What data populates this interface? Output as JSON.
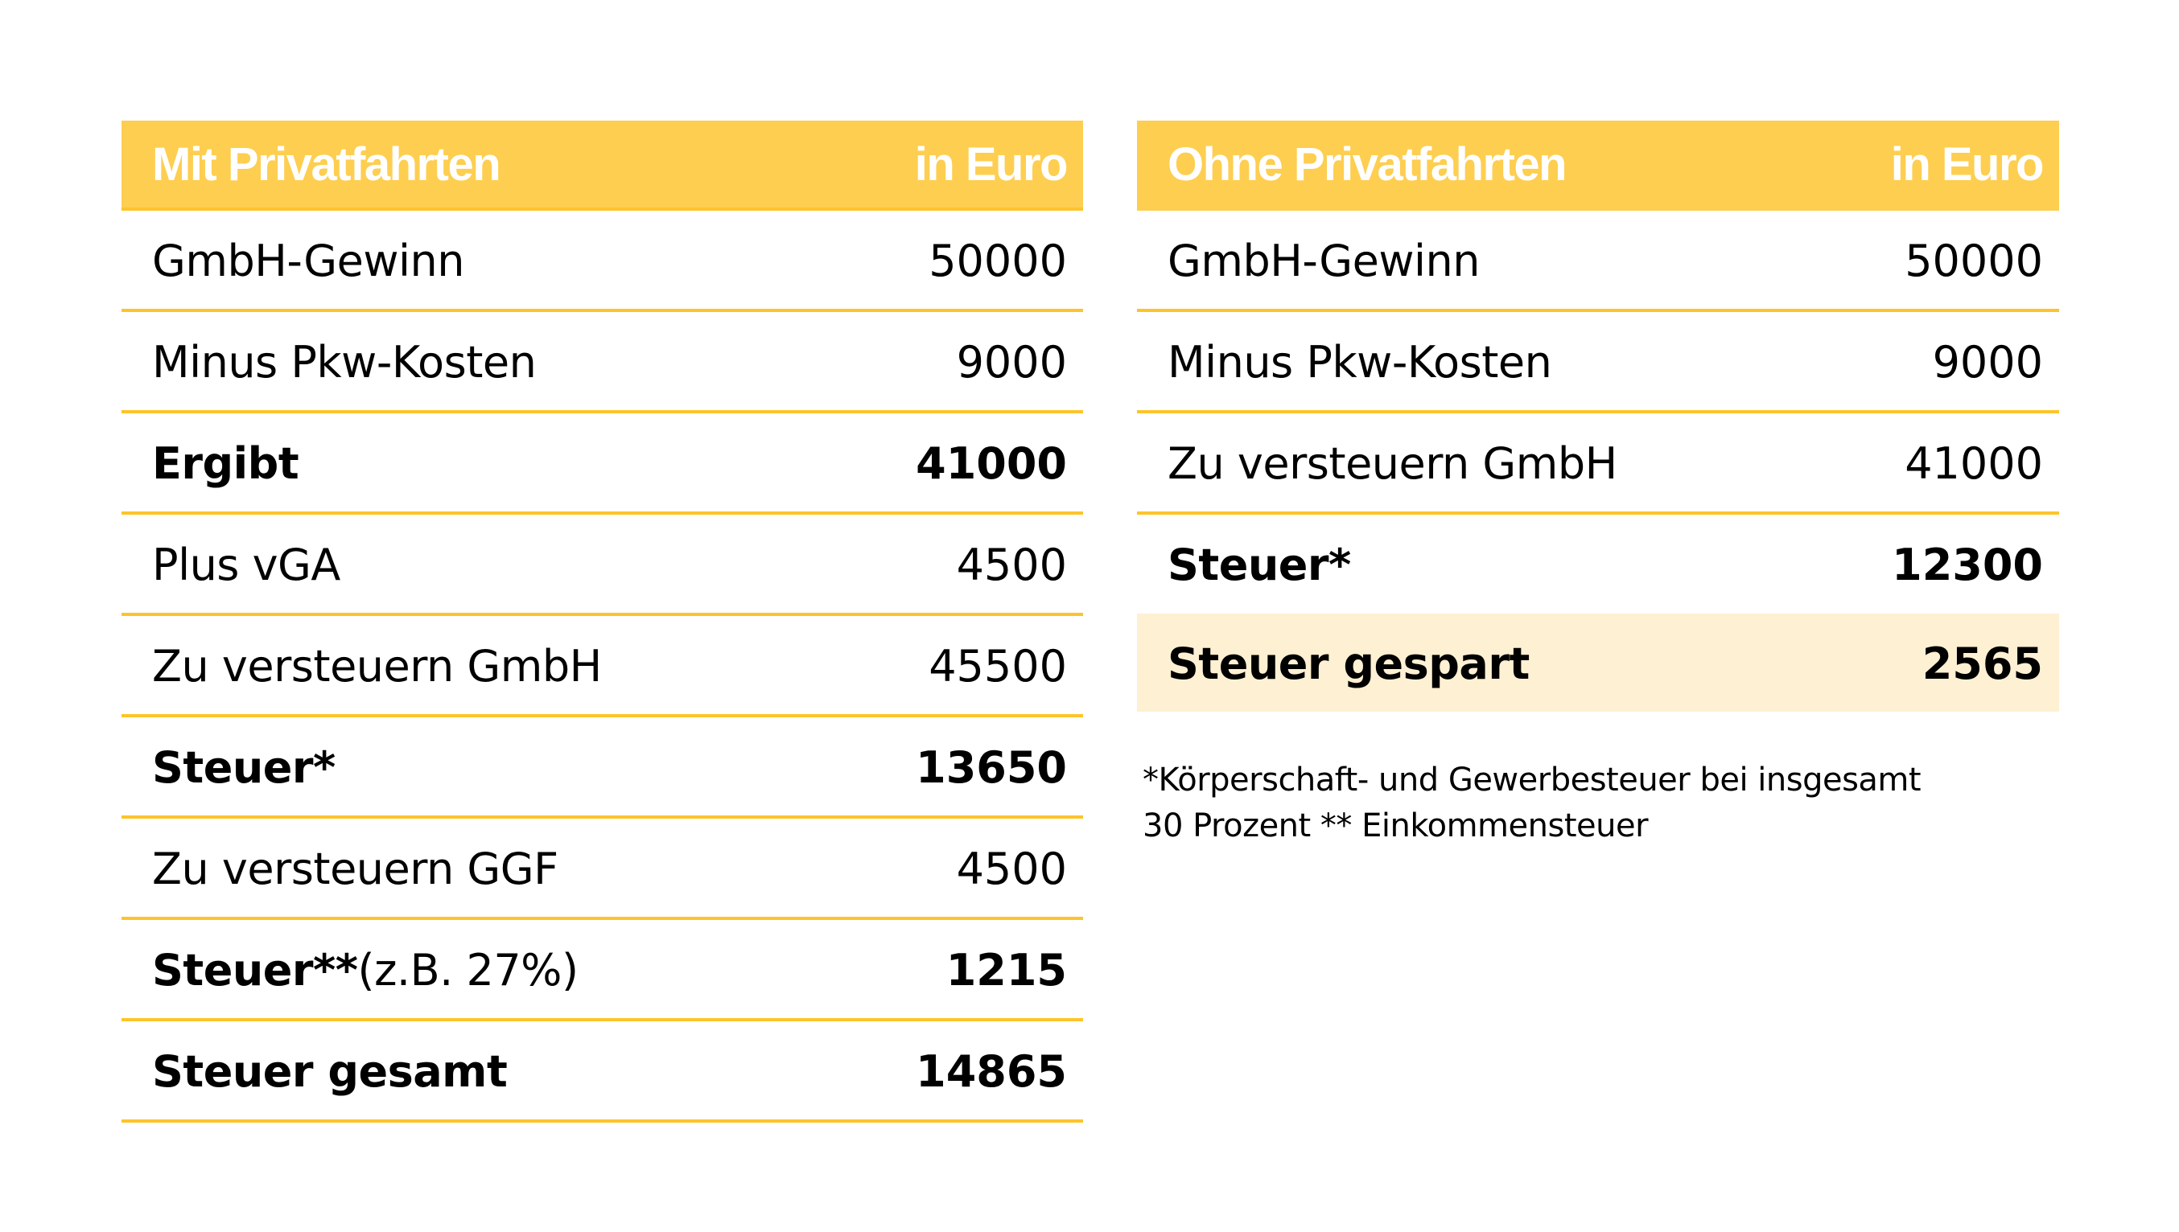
{
  "colors": {
    "header_bg": "#FECE50",
    "row_line": "#FDC42A",
    "highlight_bg": "#FEF0D3",
    "header_text": "#FFFFFF",
    "body_text": "#000000"
  },
  "left_table": {
    "title": "Mit Privatfahrten",
    "unit": "in Euro",
    "rows": [
      {
        "label": "GmbH-Gewinn",
        "extra": "",
        "value": "50000",
        "bold": false
      },
      {
        "label": "Minus Pkw-Kosten",
        "extra": "",
        "value": "9000",
        "bold": false
      },
      {
        "label": "Ergibt",
        "extra": "",
        "value": "41000",
        "bold": true
      },
      {
        "label": "Plus vGA",
        "extra": "",
        "value": "4500",
        "bold": false
      },
      {
        "label": "Zu versteuern GmbH",
        "extra": "",
        "value": "45500",
        "bold": false
      },
      {
        "label": "Steuer*",
        "extra": "",
        "value": "13650",
        "bold": true
      },
      {
        "label": "Zu versteuern GGF",
        "extra": "",
        "value": "4500",
        "bold": false
      },
      {
        "label": "Steuer**",
        "extra": "(z.B. 27%)",
        "value": "1215",
        "bold": true
      },
      {
        "label": "Steuer gesamt",
        "extra": "",
        "value": "14865",
        "bold": true
      }
    ]
  },
  "right_table": {
    "title": "Ohne Privatfahrten",
    "unit": "in Euro",
    "rows": [
      {
        "label": "GmbH-Gewinn",
        "value": "50000",
        "bold": false
      },
      {
        "label": "Minus Pkw-Kosten",
        "value": "9000",
        "bold": false
      },
      {
        "label": "Zu versteuern GmbH",
        "value": "41000",
        "bold": false
      },
      {
        "label": "Steuer*",
        "value": "12300",
        "bold": true
      }
    ],
    "highlight_row": {
      "label": "Steuer gespart",
      "value": "2565"
    }
  },
  "footnote": {
    "line1": "*Körperschaft- und Gewerbesteuer bei insgesamt",
    "line2": "30 Prozent ** Einkommensteuer"
  }
}
